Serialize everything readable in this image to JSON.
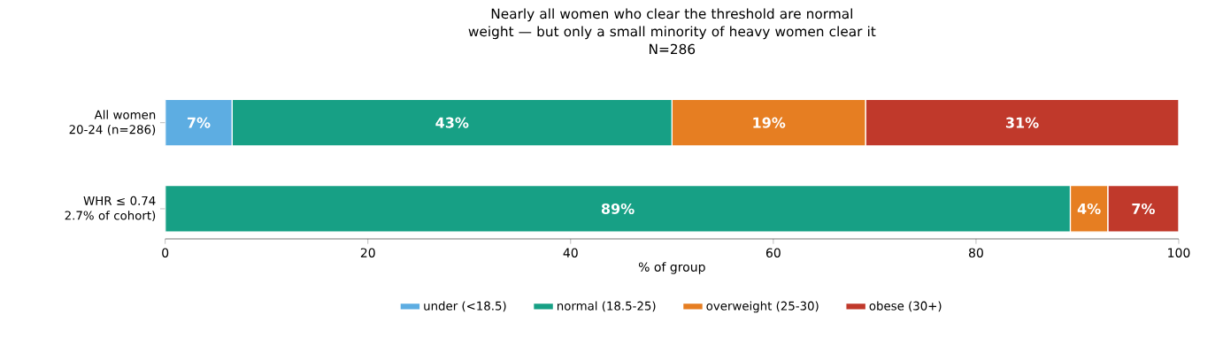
{
  "chart_data": {
    "type": "bar",
    "orientation": "horizontal",
    "stacked": true,
    "title": "Nearly all women who clear the threshold are normal weight — but only a small minority of heavy women clear it",
    "subtitle": "N=286",
    "xlabel": "% of group",
    "categories": [
      "All women 20-24 (n=286)",
      "WHR ≤ 0.74 2.7% of cohort)"
    ],
    "series": [
      {
        "name": "under (<18.5)",
        "color": "#5dade2",
        "values": [
          6.6,
          0
        ],
        "value_labels": [
          "7%",
          null
        ]
      },
      {
        "name": "normal (18.5-25)",
        "color": "#17a085",
        "values": [
          43.4,
          89.3
        ],
        "value_labels": [
          "43%",
          "89%"
        ]
      },
      {
        "name": "overweight (25-30)",
        "color": "#e67e22",
        "values": [
          19.1,
          3.7
        ],
        "value_labels": [
          "19%",
          "4%"
        ]
      },
      {
        "name": "obese (30+)",
        "color": "#c0392b",
        "values": [
          30.9,
          7.0
        ],
        "value_labels": [
          "31%",
          "7%"
        ]
      }
    ],
    "xlim": [
      0,
      100
    ],
    "xticks": [
      0,
      20,
      40,
      60,
      80,
      100
    ],
    "legend": "bottom"
  }
}
